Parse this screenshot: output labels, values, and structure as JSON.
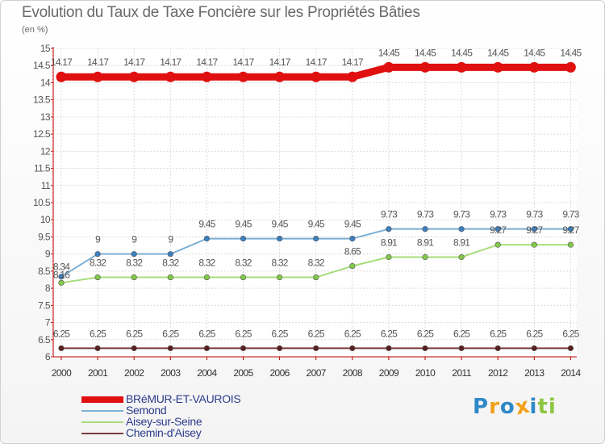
{
  "header": {
    "title": "Evolution du Taux de Taxe Foncière sur les Propriétés Bâties",
    "subtitle": "(en %)"
  },
  "logo": {
    "letters": [
      "P",
      "r",
      "o",
      "x",
      "i",
      "t",
      "i"
    ],
    "colors": [
      "#2e88c8",
      "#f2a019",
      "#2e88c8",
      "#f2a019",
      "#2e88c8",
      "#8cc63f",
      "#8cc63f"
    ]
  },
  "chart_data": {
    "type": "line",
    "title": "Evolution du Taux de Taxe Foncière sur les Propriétés Bâties",
    "ylabel": "(en %)",
    "xlabel": "",
    "ylim": [
      6,
      15
    ],
    "yticks": [
      "6",
      "6.5",
      "7",
      "7.5",
      "8",
      "8.5",
      "9",
      "9.5",
      "10",
      "10.5",
      "11",
      "11.5",
      "12",
      "12.5",
      "13",
      "13.5",
      "14",
      "14.5",
      "15"
    ],
    "categories": [
      "2000",
      "2001",
      "2002",
      "2003",
      "2004",
      "2005",
      "2006",
      "2007",
      "2008",
      "2009",
      "2010",
      "2011",
      "2012",
      "2013",
      "2014"
    ],
    "grid": true,
    "legend_position": "bottom-left",
    "series": [
      {
        "name": "BRéMUR-ET-VAUROIS",
        "color": "#e01010",
        "dot_color": "#e01010",
        "values": [
          14.17,
          14.17,
          14.17,
          14.17,
          14.17,
          14.17,
          14.17,
          14.17,
          14.17,
          14.45,
          14.45,
          14.45,
          14.45,
          14.45,
          14.45
        ],
        "labels": [
          "14.17",
          "14.17",
          "14.17",
          "14.17",
          "14.17",
          "14.17",
          "14.17",
          "14.17",
          "14.17",
          "14.45",
          "14.45",
          "14.45",
          "14.45",
          "14.45",
          "14.45"
        ]
      },
      {
        "name": "Semond",
        "color": "#7bafd4",
        "dot_color": "#3c7fc0",
        "values": [
          8.34,
          9,
          9,
          9,
          9.45,
          9.45,
          9.45,
          9.45,
          9.45,
          9.73,
          9.73,
          9.73,
          9.73,
          9.73,
          9.73
        ],
        "labels": [
          "8.34",
          "9",
          "9",
          "9",
          "9.45",
          "9.45",
          "9.45",
          "9.45",
          "9.45",
          "9.73",
          "9.73",
          "9.73",
          "9.73",
          "9.73",
          "9.73"
        ]
      },
      {
        "name": "Aisey-sur-Seine",
        "color": "#a6dd7a",
        "dot_color": "#82c84a",
        "values": [
          8.16,
          8.32,
          8.32,
          8.32,
          8.32,
          8.32,
          8.32,
          8.32,
          8.65,
          8.91,
          8.91,
          8.91,
          9.27,
          9.27,
          9.27
        ],
        "labels": [
          "8.16",
          "8.32",
          "8.32",
          "8.32",
          "8.32",
          "8.32",
          "8.32",
          "8.32",
          "8.65",
          "8.91",
          "8.91",
          "8.91",
          "9.27",
          "9.27",
          "9.27"
        ]
      },
      {
        "name": "Chemin-d'Aisey",
        "color": "#7a3a3a",
        "dot_color": "#5a1f1f",
        "values": [
          6.25,
          6.25,
          6.25,
          6.25,
          6.25,
          6.25,
          6.25,
          6.25,
          6.25,
          6.25,
          6.25,
          6.25,
          6.25,
          6.25,
          6.25
        ],
        "labels": [
          "6.25",
          "6.25",
          "6.25",
          "6.25",
          "6.25",
          "6.25",
          "6.25",
          "6.25",
          "6.25",
          "6.25",
          "6.25",
          "6.25",
          "6.25",
          "6.25",
          "6.25"
        ]
      }
    ]
  }
}
